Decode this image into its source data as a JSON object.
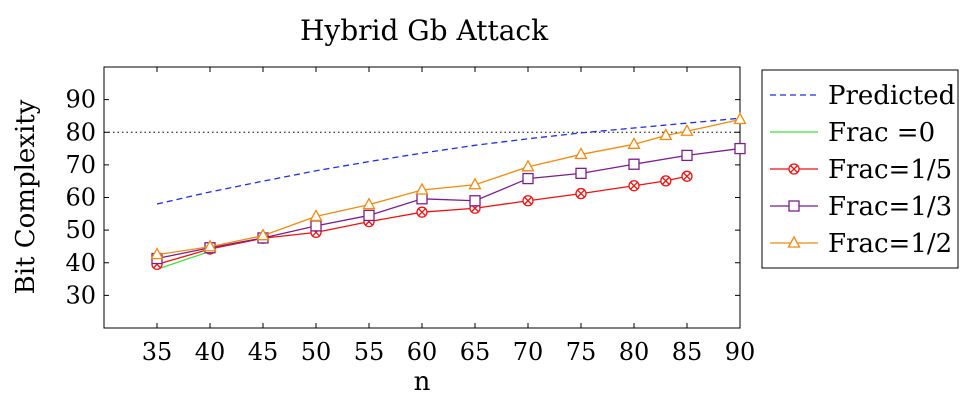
{
  "chart_data": {
    "type": "line",
    "title": "Hybrid Gb Attack",
    "xlabel": "n",
    "ylabel": "Bit Complexity",
    "xlim": [
      30,
      90
    ],
    "ylim": [
      20,
      100
    ],
    "x_ticks": [
      35,
      40,
      45,
      50,
      55,
      60,
      65,
      70,
      75,
      80,
      85,
      90
    ],
    "y_ticks": [
      30,
      40,
      50,
      60,
      70,
      80,
      90
    ],
    "grid": false,
    "legend_position": "outside-right",
    "reference_line": {
      "y": 80,
      "style": "dotted",
      "color": "#000000"
    },
    "series": [
      {
        "name": "Predicted",
        "color": "#1f2fe0",
        "line_style": "dashed",
        "marker": "none",
        "x": [
          35,
          40,
          45,
          50,
          55,
          60,
          65,
          70,
          75,
          80,
          85,
          90
        ],
        "y": [
          58,
          61.7,
          65,
          68.2,
          71,
          73.6,
          76,
          78,
          79.8,
          81.3,
          82.8,
          84.3
        ]
      },
      {
        "name": "Frac =0",
        "color": "#44dd44",
        "line_style": "solid",
        "marker": "none",
        "x": [
          35,
          40
        ],
        "y": [
          38,
          43.5
        ]
      },
      {
        "name": "Frac=1/5",
        "color": "#ee1111",
        "line_style": "solid",
        "marker": "circle-x",
        "x": [
          35,
          40,
          45,
          50,
          55,
          60,
          65,
          70,
          75,
          80,
          83,
          85
        ],
        "y": [
          39.5,
          44.2,
          47.5,
          49.3,
          52.6,
          55.5,
          56.7,
          59,
          61.2,
          63.6,
          65.1,
          66.5
        ]
      },
      {
        "name": "Frac=1/3",
        "color": "#7a1f8a",
        "line_style": "solid",
        "marker": "square",
        "x": [
          35,
          40,
          45,
          50,
          55,
          60,
          65,
          70,
          75,
          80,
          85,
          90
        ],
        "y": [
          41.3,
          44.6,
          47.6,
          51.3,
          54.5,
          59.6,
          59,
          65.8,
          67.4,
          70.2,
          72.9,
          75
        ]
      },
      {
        "name": "Frac=1/2",
        "color": "#f08a10",
        "line_style": "solid",
        "marker": "triangle",
        "x": [
          35,
          40,
          45,
          50,
          55,
          60,
          65,
          70,
          75,
          80,
          83,
          85,
          90
        ],
        "y": [
          42.5,
          44.9,
          48.3,
          54.2,
          57.8,
          62.3,
          63.9,
          69.4,
          73.2,
          76.3,
          79,
          80.3,
          83.9
        ]
      }
    ]
  }
}
